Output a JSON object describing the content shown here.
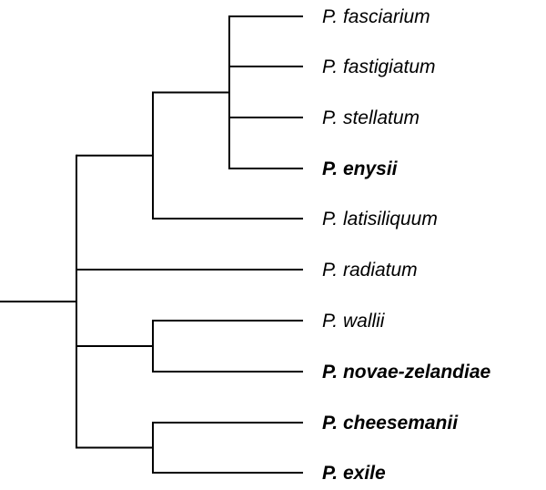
{
  "tree": {
    "label": "",
    "children": [
      {
        "label": "",
        "children": [
          {
            "label": "",
            "children": [
              {
                "label": "P. fasciarium",
                "bold": false
              },
              {
                "label": "P. fastigiatum",
                "bold": false
              },
              {
                "label": "P. stellatum",
                "bold": false
              },
              {
                "label": "P. enysii",
                "bold": true
              }
            ]
          },
          {
            "label": "P. latisiliquum",
            "bold": false
          }
        ]
      },
      {
        "label": "P. radiatum",
        "bold": false
      },
      {
        "label": "",
        "children": [
          {
            "label": "P. wallii",
            "bold": false
          },
          {
            "label": "P. novae-zelandiae",
            "bold": true
          }
        ]
      },
      {
        "label": "",
        "children": [
          {
            "label": "P. cheesemanii",
            "bold": true
          },
          {
            "label": "P. exile",
            "bold": true
          }
        ]
      }
    ]
  }
}
